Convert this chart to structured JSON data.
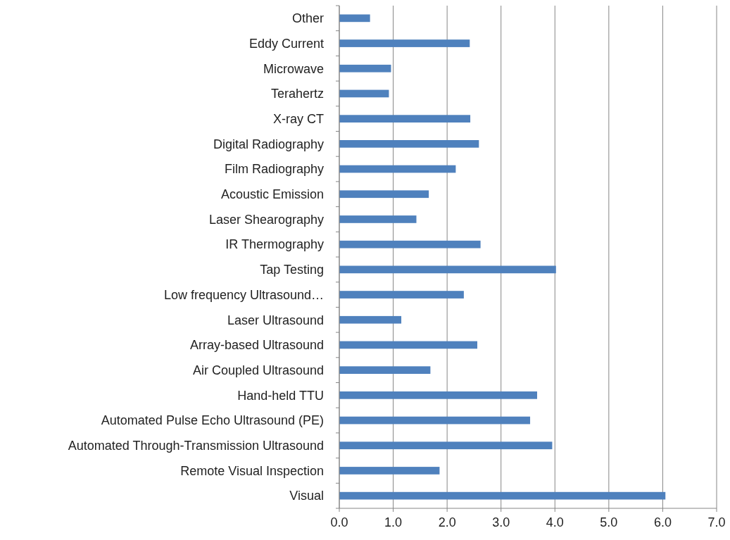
{
  "chart_data": {
    "type": "bar",
    "orientation": "horizontal",
    "categories": [
      "Other",
      "Eddy Current",
      "Microwave",
      "Terahertz",
      "X-ray CT",
      "Digital Radiography",
      "Film Radiography",
      "Acoustic Emission",
      "Laser Shearography",
      "IR Thermography",
      "Tap Testing",
      "Low frequency Ultrasound…",
      "Laser Ultrasound",
      "Array-based Ultrasound",
      "Air Coupled Ultrasound",
      "Hand-held TTU",
      "Automated Pulse Echo Ultrasound (PE)",
      "Automated Through-Transmission Ultrasound",
      "Remote Visual Inspection",
      "Visual"
    ],
    "values": [
      0.57,
      2.42,
      0.96,
      0.92,
      2.43,
      2.59,
      2.16,
      1.66,
      1.43,
      2.62,
      4.02,
      2.31,
      1.15,
      2.56,
      1.69,
      3.67,
      3.54,
      3.95,
      1.86,
      6.05
    ],
    "color": "#4f81bd",
    "xlim": [
      0,
      7
    ],
    "xticks": [
      {
        "value": 0,
        "label": "0.0"
      },
      {
        "value": 1,
        "label": "1.0"
      },
      {
        "value": 2,
        "label": "2.0"
      },
      {
        "value": 3,
        "label": "3.0"
      },
      {
        "value": 4,
        "label": "4.0"
      },
      {
        "value": 5,
        "label": "5.0"
      },
      {
        "value": 6,
        "label": "6.0"
      },
      {
        "value": 7,
        "label": "7.0"
      }
    ],
    "grid": "x"
  }
}
